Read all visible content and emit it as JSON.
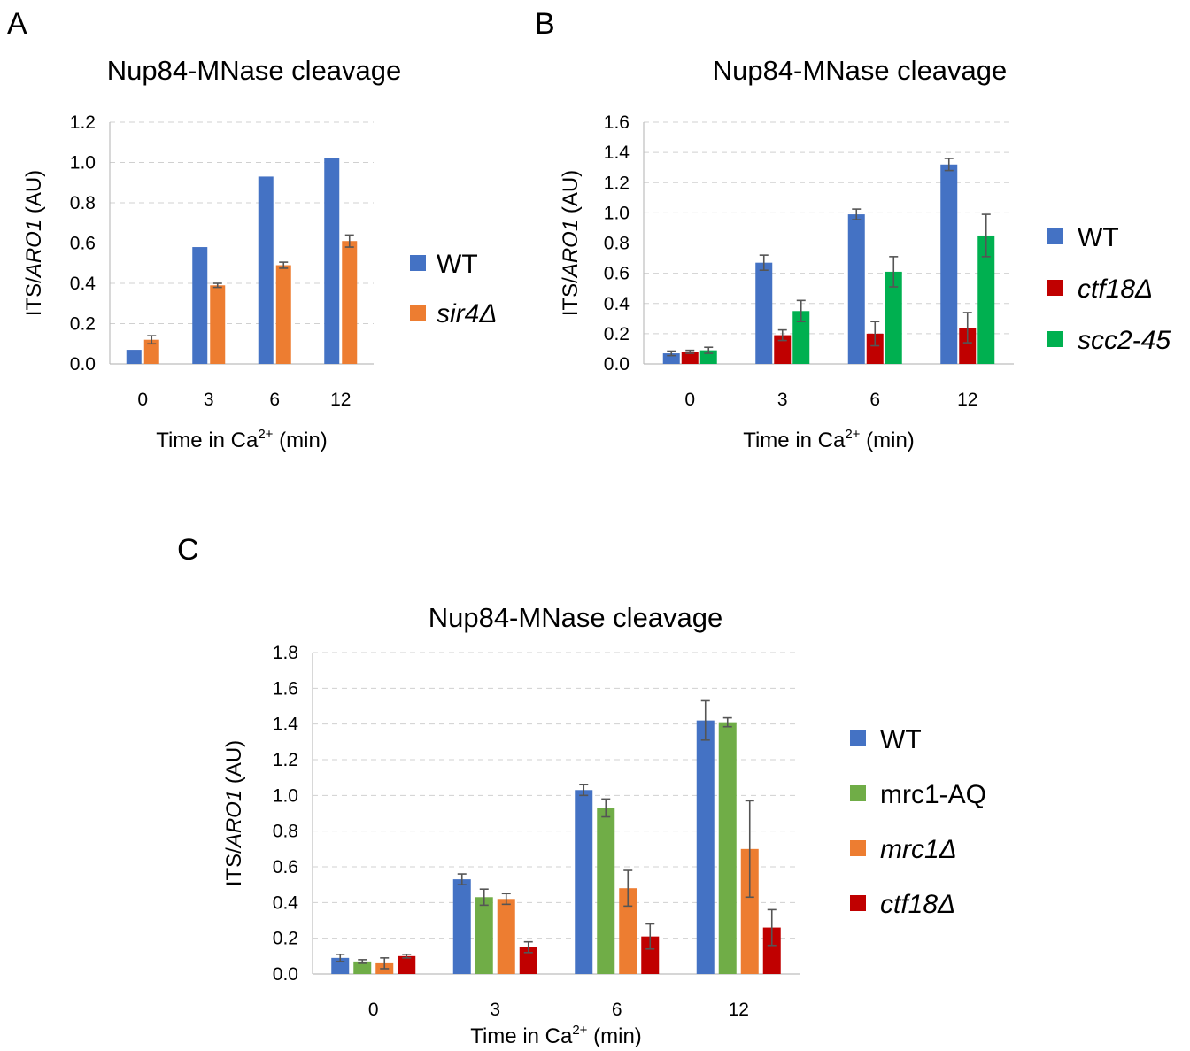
{
  "panels": [
    {
      "letter": "A",
      "chart_data": {
        "type": "bar",
        "title": "Nup84-MNase cleavage",
        "ylabel": "ITS/ARO1 (AU)",
        "ylabel_parts": [
          "ITS/",
          "ARO1",
          " (AU)"
        ],
        "xlabel_parts": [
          "Time in Ca",
          "2+",
          " (min)"
        ],
        "categories": [
          "0",
          "3",
          "6",
          "12"
        ],
        "ylim": [
          0,
          1.2
        ],
        "yticks": [
          0,
          0.2,
          0.4,
          0.6,
          0.8,
          1.0,
          1.2
        ],
        "ytick_labels": [
          "0.0",
          "0.2",
          "0.4",
          "0.6",
          "0.8",
          "1.0",
          "1.2"
        ],
        "grid": true,
        "legend_position": "right",
        "series": [
          {
            "name": "WT",
            "italic": false,
            "color": "#4472c4",
            "values": [
              0.07,
              0.58,
              0.93,
              1.02
            ],
            "errors": [
              0,
              0,
              0,
              0
            ]
          },
          {
            "name": "sir4Δ",
            "italic": true,
            "color": "#ed7d31",
            "values": [
              0.12,
              0.39,
              0.49,
              0.61
            ],
            "errors": [
              0.02,
              0.01,
              0.015,
              0.03
            ]
          }
        ]
      }
    },
    {
      "letter": "B",
      "chart_data": {
        "type": "bar",
        "title": "Nup84-MNase cleavage",
        "ylabel": "ITS/ARO1 (AU)",
        "ylabel_parts": [
          "ITS/",
          "ARO1",
          " (AU)"
        ],
        "xlabel_parts": [
          "Time in Ca",
          "2+",
          " (min)"
        ],
        "categories": [
          "0",
          "3",
          "6",
          "12"
        ],
        "ylim": [
          0,
          1.6
        ],
        "yticks": [
          0,
          0.2,
          0.4,
          0.6,
          0.8,
          1.0,
          1.2,
          1.4,
          1.6
        ],
        "ytick_labels": [
          "0.0",
          "0.2",
          "0.4",
          "0.6",
          "0.8",
          "1.0",
          "1.2",
          "1.4",
          "1.6"
        ],
        "grid": true,
        "legend_position": "right",
        "series": [
          {
            "name": "WT",
            "italic": false,
            "color": "#4472c4",
            "values": [
              0.07,
              0.67,
              0.99,
              1.32
            ],
            "errors": [
              0.015,
              0.05,
              0.035,
              0.04
            ]
          },
          {
            "name": "ctf18Δ",
            "italic": true,
            "color": "#c00000",
            "values": [
              0.08,
              0.19,
              0.2,
              0.24
            ],
            "errors": [
              0.01,
              0.035,
              0.08,
              0.1
            ]
          },
          {
            "name": "scc2-45",
            "italic": true,
            "color": "#00b050",
            "values": [
              0.09,
              0.35,
              0.61,
              0.85
            ],
            "errors": [
              0.02,
              0.07,
              0.1,
              0.14
            ]
          }
        ]
      }
    },
    {
      "letter": "C",
      "chart_data": {
        "type": "bar",
        "title": "Nup84-MNase cleavage",
        "ylabel": "ITS/ARO1 (AU)",
        "ylabel_parts": [
          "ITS/",
          "ARO1",
          " (AU)"
        ],
        "xlabel_parts": [
          "Time in Ca",
          "2+",
          " (min)"
        ],
        "categories": [
          "0",
          "3",
          "6",
          "12"
        ],
        "ylim": [
          0,
          1.8
        ],
        "yticks": [
          0,
          0.2,
          0.4,
          0.6,
          0.8,
          1.0,
          1.2,
          1.4,
          1.6,
          1.8
        ],
        "ytick_labels": [
          "0.0",
          "0.2",
          "0.4",
          "0.6",
          "0.8",
          "1.0",
          "1.2",
          "1.4",
          "1.6",
          "1.8"
        ],
        "grid": true,
        "legend_position": "right",
        "series": [
          {
            "name": "WT",
            "italic": false,
            "color": "#4472c4",
            "values": [
              0.09,
              0.53,
              1.03,
              1.42
            ],
            "errors": [
              0.02,
              0.03,
              0.03,
              0.11
            ]
          },
          {
            "name": "mrc1-AQ",
            "italic": false,
            "color": "#70ad47",
            "values": [
              0.07,
              0.43,
              0.93,
              1.41
            ],
            "errors": [
              0.01,
              0.045,
              0.05,
              0.025
            ]
          },
          {
            "name": "mrc1Δ",
            "italic": true,
            "color": "#ed7d31",
            "values": [
              0.06,
              0.42,
              0.48,
              0.7
            ],
            "errors": [
              0.03,
              0.03,
              0.1,
              0.27
            ]
          },
          {
            "name": "ctf18Δ",
            "italic": true,
            "color": "#c00000",
            "values": [
              0.1,
              0.15,
              0.21,
              0.26
            ],
            "errors": [
              0.01,
              0.03,
              0.07,
              0.1
            ]
          }
        ]
      }
    }
  ]
}
